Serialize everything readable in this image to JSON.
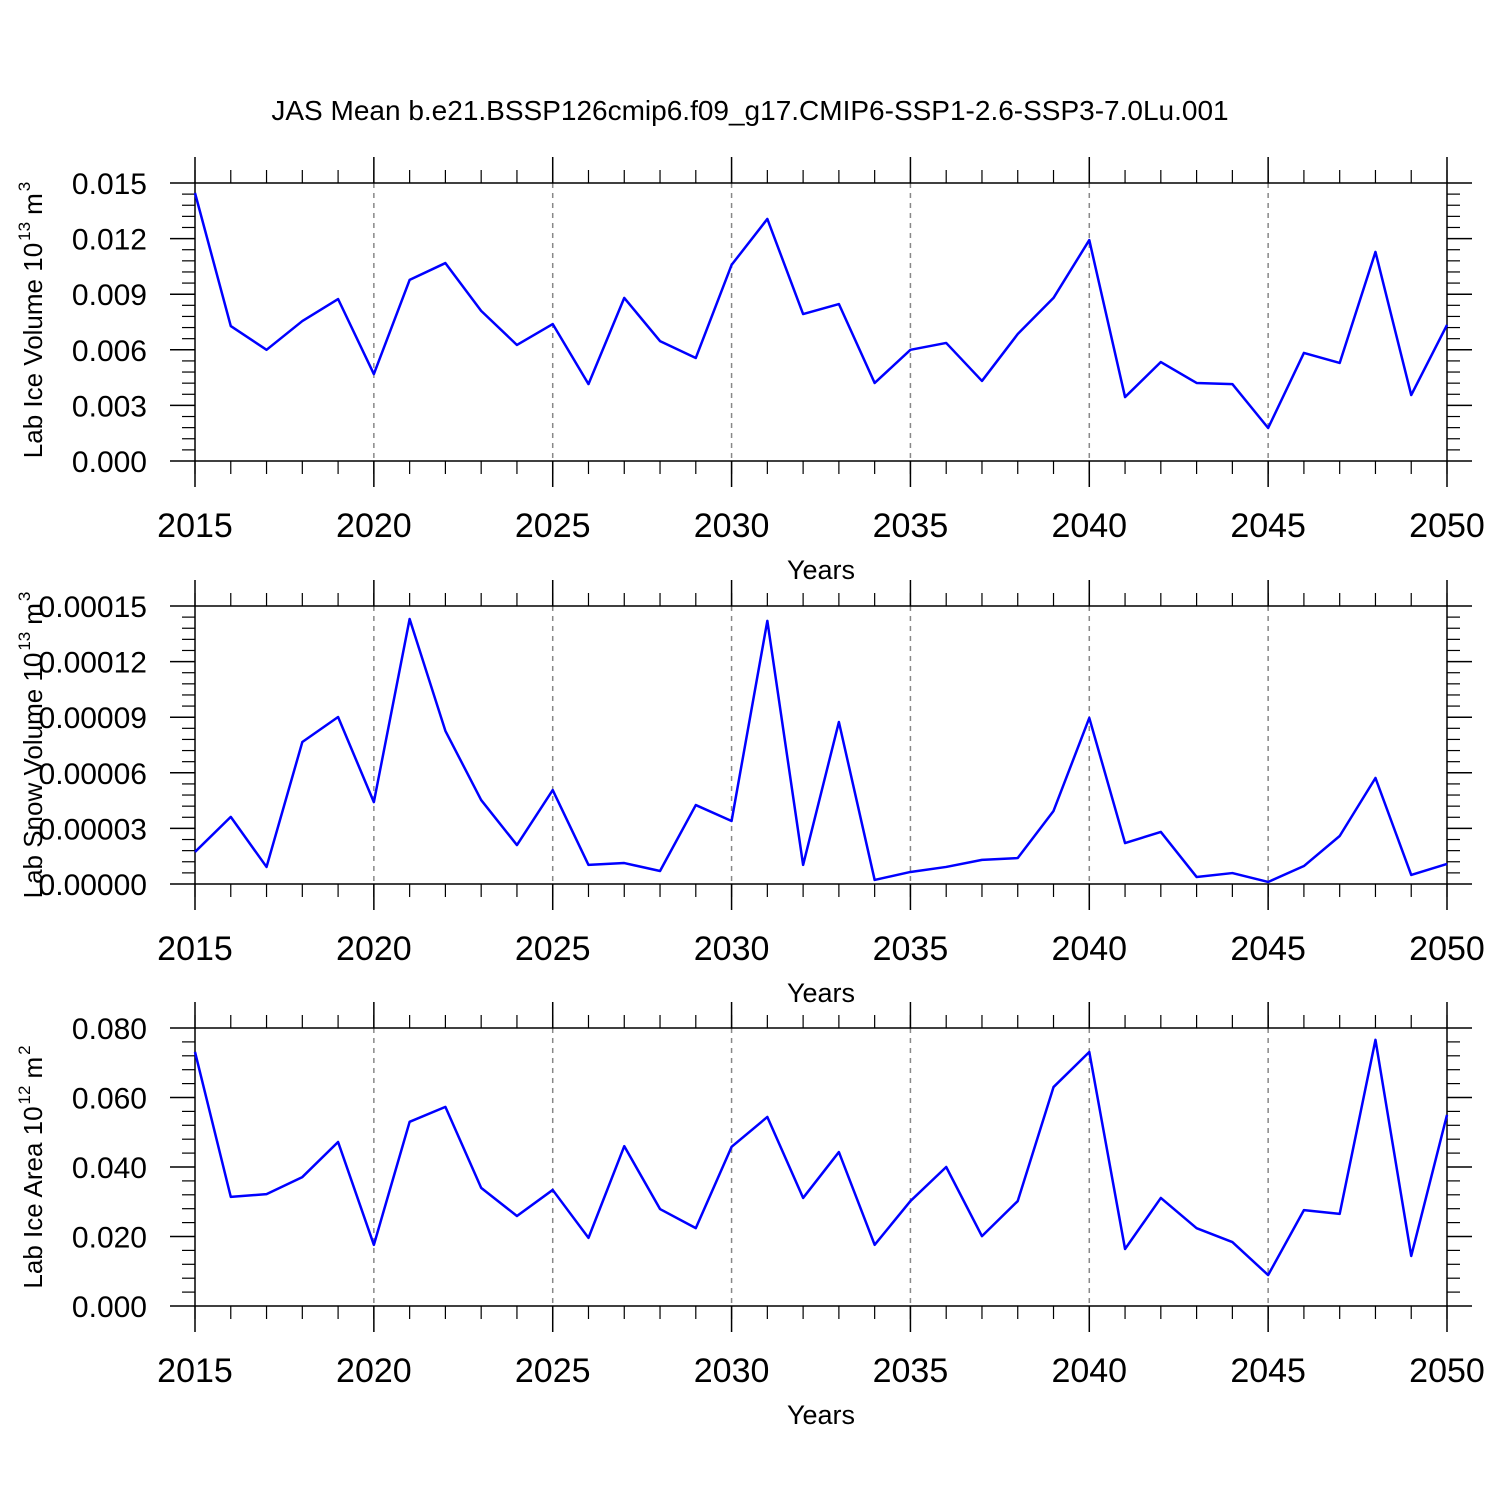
{
  "chart_data": [
    {
      "type": "line",
      "title": "JAS Mean b.e21.BSSP126cmip6.f09_g17.CMIP6-SSP1-2.6-SSP3-7.0Lu.001",
      "xlabel": "Years",
      "ylabel": [
        "Lab Ice Volume 10",
        "13",
        "m",
        "3"
      ],
      "x": [
        2015,
        2016,
        2017,
        2018,
        2019,
        2020,
        2021,
        2022,
        2023,
        2024,
        2025,
        2026,
        2027,
        2028,
        2029,
        2030,
        2031,
        2032,
        2033,
        2034,
        2035,
        2036,
        2037,
        2038,
        2039,
        2040,
        2041,
        2042,
        2043,
        2044,
        2045,
        2046,
        2047,
        2048,
        2049,
        2050
      ],
      "values": [
        0.01446,
        0.00728,
        0.006,
        0.00755,
        0.00874,
        0.00469,
        0.00977,
        0.01068,
        0.0081,
        0.00626,
        0.00739,
        0.00415,
        0.0088,
        0.00647,
        0.00556,
        0.01058,
        0.01306,
        0.00793,
        0.00847,
        0.00421,
        0.006,
        0.00637,
        0.00432,
        0.00685,
        0.0088,
        0.01192,
        0.00345,
        0.00534,
        0.00421,
        0.00415,
        0.00178,
        0.00583,
        0.00529,
        0.01128,
        0.00356,
        0.00734
      ],
      "color": "#0000ff",
      "xlim": [
        2015,
        2050
      ],
      "xticks": [
        2015,
        2020,
        2025,
        2030,
        2035,
        2040,
        2045,
        2050
      ],
      "ylim": [
        0,
        0.015
      ],
      "yticks": [
        {
          "value": 0,
          "label": "0.000"
        },
        0.003,
        0.006,
        0.009,
        0.012,
        0.015
      ],
      "grid": true
    },
    {
      "type": "line",
      "xlabel": "Years",
      "ylabel": [
        "Lab Snow Volume 10",
        "13",
        "m",
        "3"
      ],
      "x": [
        2015,
        2016,
        2017,
        2018,
        2019,
        2020,
        2021,
        2022,
        2023,
        2024,
        2025,
        2026,
        2027,
        2028,
        2029,
        2030,
        2031,
        2032,
        2033,
        2034,
        2035,
        2036,
        2037,
        2038,
        2039,
        2040,
        2041,
        2042,
        2043,
        2044,
        2045,
        2046,
        2047,
        2048,
        2049,
        2050
      ],
      "values": [
        1.73e-05,
        3.62e-05,
        9.2e-06,
        7.66e-05,
        9.01e-05,
        4.42e-05,
        0.000143,
        8.26e-05,
        4.53e-05,
        2.1e-05,
        5.07e-05,
        1.03e-05,
        1.13e-05,
        7e-06,
        4.26e-05,
        3.4e-05,
        0.000142,
        1.03e-05,
        8.74e-05,
        2.2e-06,
        6.5e-06,
        9.2e-06,
        1.3e-05,
        1.4e-05,
        3.94e-05,
        8.96e-05,
        2.21e-05,
        2.81e-05,
        3.8e-06,
        5.9e-06,
        1.1e-06,
        9.7e-06,
        2.59e-05,
        5.72e-05,
        4.9e-06,
        1.08e-05
      ],
      "color": "#0000ff",
      "xlim": [
        2015,
        2050
      ],
      "xticks": [
        2015,
        2020,
        2025,
        2030,
        2035,
        2040,
        2045,
        2050
      ],
      "ylim": [
        0,
        0.00015
      ],
      "yticks": [
        {
          "value": 0,
          "label": "0.00000"
        },
        3e-05,
        6e-05,
        9e-05,
        0.00012,
        0.00015
      ],
      "grid": true
    },
    {
      "type": "line",
      "xlabel": "Years",
      "ylabel": [
        "Lab Ice Area 10",
        "12",
        "m",
        "2"
      ],
      "x": [
        2015,
        2016,
        2017,
        2018,
        2019,
        2020,
        2021,
        2022,
        2023,
        2024,
        2025,
        2026,
        2027,
        2028,
        2029,
        2030,
        2031,
        2032,
        2033,
        2034,
        2035,
        2036,
        2037,
        2038,
        2039,
        2040,
        2041,
        2042,
        2043,
        2044,
        2045,
        2046,
        2047,
        2048,
        2049,
        2050
      ],
      "values": [
        0.0731,
        0.0314,
        0.0322,
        0.0371,
        0.0472,
        0.0176,
        0.053,
        0.0573,
        0.034,
        0.0259,
        0.0334,
        0.0196,
        0.046,
        0.0279,
        0.0224,
        0.0458,
        0.0544,
        0.0311,
        0.0443,
        0.0176,
        0.0302,
        0.04,
        0.0201,
        0.0302,
        0.063,
        0.0731,
        0.0164,
        0.0311,
        0.0224,
        0.0184,
        0.0089,
        0.0276,
        0.0265,
        0.0766,
        0.0144,
        0.055
      ],
      "color": "#0000ff",
      "xlim": [
        2015,
        2050
      ],
      "xticks": [
        2015,
        2020,
        2025,
        2030,
        2035,
        2040,
        2045,
        2050
      ],
      "ylim": [
        0,
        0.08
      ],
      "yticks": [
        {
          "value": 0,
          "label": "0.000"
        },
        {
          "value": 0.02,
          "label": "0.020"
        },
        {
          "value": 0.04,
          "label": "0.040"
        },
        {
          "value": 0.06,
          "label": "0.060"
        },
        {
          "value": 0.08,
          "label": "0.080"
        }
      ],
      "grid": true
    }
  ]
}
